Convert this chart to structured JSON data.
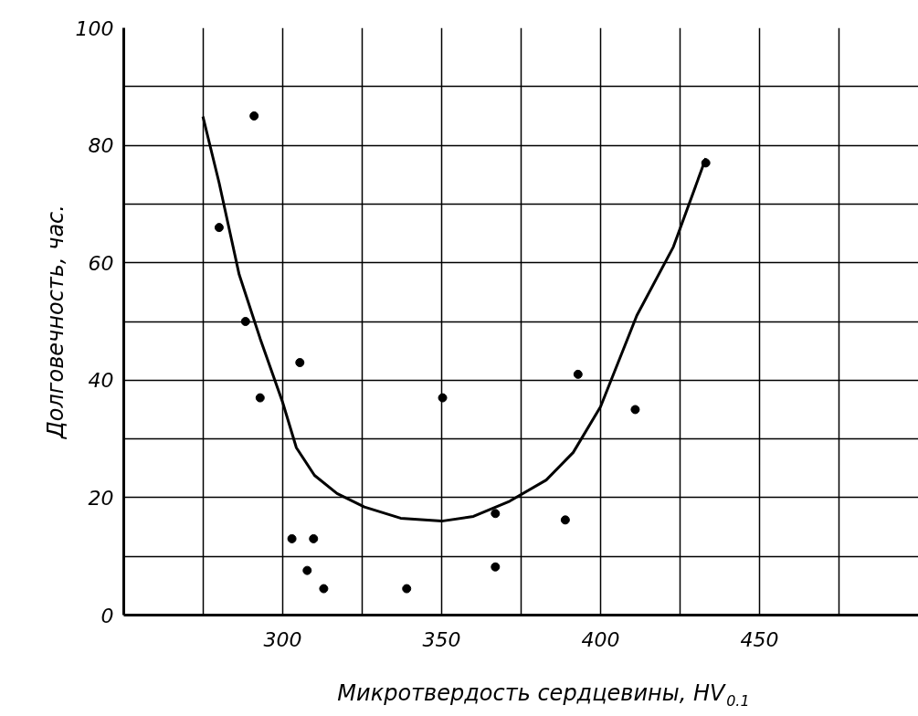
{
  "chart_data": {
    "type": "scatter",
    "xlabel": "Микротвердость сердцевины, HV$_{0.1}$",
    "ylabel": "Долговечность, час.",
    "xlim": [
      250,
      500
    ],
    "ylim": [
      0,
      100
    ],
    "xticks": [
      {
        "value": 250,
        "label": null
      },
      {
        "value": 275,
        "label": null
      },
      300,
      {
        "value": 325,
        "label": null
      },
      350,
      {
        "value": 375,
        "label": null
      },
      400,
      {
        "value": 425,
        "label": null
      },
      450,
      {
        "value": 475,
        "label": null
      }
    ],
    "yticks": [
      0,
      {
        "value": 10,
        "label": null
      },
      20,
      {
        "value": 30,
        "label": null
      },
      40,
      {
        "value": 50,
        "label": null
      },
      60,
      {
        "value": 70,
        "label": null
      },
      80,
      {
        "value": 90,
        "label": null
      },
      100
    ],
    "grid": true,
    "series": [
      {
        "marker": "circle",
        "color": "#000000",
        "x": [
          291,
          280,
          288.3,
          292.9,
          305.4,
          302.9,
          309.7,
          307.7,
          312.9,
          339,
          350.3,
          366.9,
          366.9,
          388.9,
          392.9,
          410.9,
          433.1
        ],
        "values": [
          85,
          66,
          50,
          37,
          43,
          13,
          13,
          7.6,
          4.5,
          4.5,
          37,
          17.3,
          8.2,
          16.2,
          41,
          35,
          77
        ]
      },
      {
        "type": "line",
        "color": "#000000",
        "x": [
          274.9,
          280,
          286.3,
          292.9,
          300,
          304.3,
          310,
          317.1,
          325.7,
          337.1,
          350,
          360,
          371.4,
          382.9,
          391.4,
          400,
          411.4,
          422.9,
          433.1
        ],
        "values": [
          84.9,
          73.6,
          58,
          47.1,
          36.2,
          28.5,
          23.8,
          20.7,
          18.4,
          16.5,
          16,
          16.8,
          19.4,
          23,
          27.7,
          35.5,
          51,
          62.7,
          77.8
        ]
      }
    ]
  }
}
